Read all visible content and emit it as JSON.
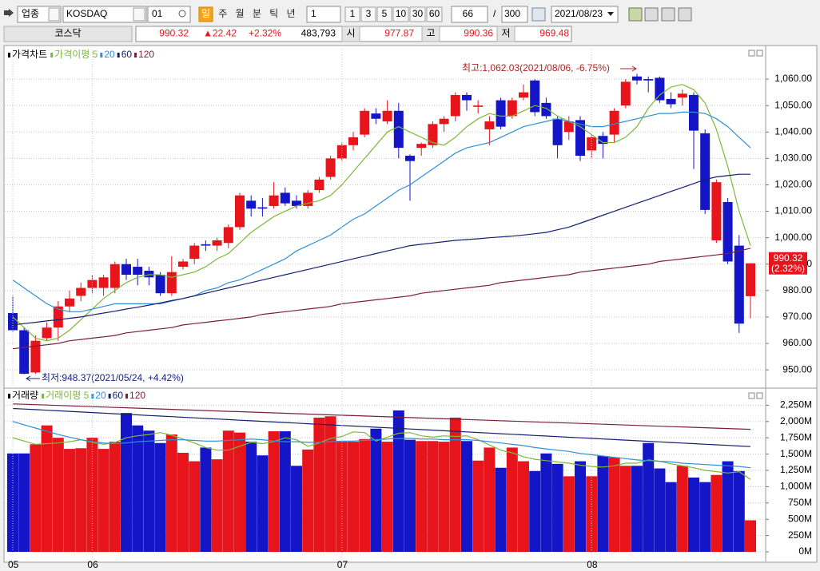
{
  "toolbar": {
    "market": "업종",
    "code": "KOSDAQ",
    "sub_code": "01",
    "periods": [
      "일",
      "주",
      "월",
      "분",
      "틱",
      "년"
    ],
    "interval": "1",
    "quick": [
      "1",
      "3",
      "5",
      "10",
      "30",
      "60"
    ],
    "count": "66",
    "separator": "/",
    "max": "300",
    "date": "2021/08/23"
  },
  "quote": {
    "name": "코스닥",
    "price": "990.32",
    "change": "▲22.42",
    "change_pct": "+2.32%",
    "volume": "483,793",
    "open_label": "시",
    "open": "977.87",
    "high_label": "고",
    "high": "990.36",
    "low_label": "저",
    "low": "969.48"
  },
  "chart_data": [
    {
      "type": "candlestick",
      "legend_title": "가격차트",
      "up_color": "#e8141c",
      "down_color": "#1515c8",
      "open": [
        971.5,
        965,
        949,
        962,
        966,
        974,
        978,
        981,
        981,
        981,
        990,
        989,
        987.5,
        986,
        979,
        989,
        992,
        997.5,
        997,
        998,
        1004,
        1014,
        1011.5,
        1012,
        1017,
        1014,
        1012,
        1018,
        1023,
        1030,
        1035,
        1039,
        1047,
        1044,
        1048,
        1031,
        1034,
        1035,
        1043,
        1046,
        1054,
        1049.5,
        1041,
        1052,
        1046,
        1053,
        1059.5,
        1051,
        1045,
        1040,
        1044.5,
        1033,
        1038.5,
        1039,
        1050,
        1061,
        1060,
        1060.5,
        1052.5,
        1053,
        1054,
        1039.5,
        999,
        1013.5,
        997,
        977.87
      ],
      "high": [
        978,
        966,
        963,
        968,
        976,
        980,
        983,
        986,
        986,
        991,
        992,
        992,
        989,
        987,
        993,
        992,
        998,
        999,
        1000,
        1005,
        1017,
        1016,
        1015,
        1021,
        1019,
        1016,
        1018,
        1023,
        1031,
        1036,
        1040,
        1049,
        1049,
        1052,
        1051,
        1031.5,
        1036,
        1044,
        1046,
        1055,
        1055,
        1052,
        1046,
        1053,
        1053,
        1058,
        1060,
        1053,
        1046,
        1046,
        1046,
        1039,
        1040,
        1049,
        1060,
        1062.03,
        1061,
        1061,
        1055,
        1056,
        1055,
        1041,
        1022,
        1015,
        1001,
        990.36
      ],
      "low": [
        964.5,
        948.37,
        948.5,
        961,
        961,
        972,
        976,
        979,
        978,
        979,
        984,
        982,
        982,
        978,
        978,
        988,
        990,
        995,
        995,
        996,
        1003,
        1008,
        1008,
        1011,
        1012,
        1011,
        1011,
        1017,
        1022,
        1029,
        1033,
        1038,
        1043,
        1043,
        1030,
        1014,
        1031,
        1034,
        1040,
        1044,
        1048,
        1047,
        1035,
        1041,
        1045,
        1052,
        1046,
        1045,
        1030,
        1037,
        1029,
        1030,
        1030,
        1036,
        1049,
        1058,
        1055,
        1051,
        1049,
        1050,
        1026,
        1009,
        998,
        990,
        964,
        969.48
      ],
      "close": [
        965,
        948.5,
        961,
        966,
        974,
        977,
        981,
        984,
        985,
        990,
        986,
        986,
        985,
        979,
        987,
        991,
        997,
        997,
        999,
        1004,
        1016,
        1011,
        1011,
        1016,
        1013,
        1012,
        1017,
        1022,
        1030,
        1035,
        1038,
        1048,
        1045,
        1048,
        1034,
        1029,
        1035.5,
        1043,
        1045,
        1054,
        1052,
        1050,
        1044,
        1042,
        1052,
        1055,
        1047.5,
        1046,
        1035,
        1044,
        1031,
        1038,
        1035.5,
        1048,
        1059,
        1059.5,
        1059.5,
        1052,
        1050.5,
        1054.5,
        1040.5,
        1010.5,
        1021,
        991,
        967.5,
        990.32
      ],
      "change_label": "(2.32%)",
      "ma_series": [
        {
          "name": "가격이평 5",
          "color": "#7cb83a",
          "values": [
            970,
            966,
            962,
            961,
            962,
            965,
            969,
            973,
            977,
            980,
            983,
            985,
            986,
            986,
            985,
            986,
            987,
            989,
            992,
            994,
            998,
            1002,
            1005,
            1008,
            1010,
            1012,
            1013,
            1014,
            1016,
            1020,
            1025,
            1030,
            1035,
            1040,
            1042,
            1040,
            1038,
            1036,
            1035,
            1038,
            1042,
            1045,
            1047,
            1046,
            1046,
            1048,
            1050,
            1049,
            1046,
            1044,
            1042,
            1039,
            1036,
            1036,
            1038,
            1042,
            1049,
            1054,
            1057,
            1058,
            1056,
            1051,
            1041,
            1027,
            1010,
            997
          ]
        },
        {
          "name": "20",
          "color": "#2f8fd6",
          "values": [
            984,
            981,
            978,
            975,
            973,
            972,
            972,
            973,
            974,
            975,
            975,
            975,
            975,
            975,
            976,
            977,
            978,
            980,
            981,
            983,
            984,
            986,
            988,
            990,
            992,
            995,
            997,
            999,
            1001,
            1004,
            1007,
            1009,
            1012,
            1015,
            1018,
            1020,
            1023,
            1026,
            1029,
            1032,
            1034,
            1035,
            1036,
            1038,
            1040,
            1042,
            1043,
            1044,
            1045,
            1044,
            1043,
            1042,
            1042,
            1043,
            1044,
            1045,
            1046,
            1047,
            1047,
            1047.5,
            1047.5,
            1047,
            1045,
            1042,
            1038,
            1034
          ]
        },
        {
          "name": "60",
          "color": "#14206e",
          "values": [
            967,
            967.5,
            968,
            968.5,
            969,
            969.5,
            970,
            970.8,
            971.5,
            972.2,
            973,
            973.7,
            974.5,
            975.3,
            976.2,
            977,
            978,
            979,
            980,
            981,
            982,
            983,
            984,
            985,
            986,
            987,
            988,
            989,
            990,
            991,
            992,
            993,
            994,
            995,
            996,
            997,
            997.5,
            998,
            998.5,
            999,
            999.3,
            999.6,
            1000,
            1000.3,
            1000.6,
            1001,
            1001.5,
            1002,
            1003,
            1004,
            1005.5,
            1007,
            1008.5,
            1010,
            1011.5,
            1013,
            1014.5,
            1016,
            1017.5,
            1019,
            1020.5,
            1022,
            1023,
            1023.5,
            1024,
            1024
          ]
        },
        {
          "name": "120",
          "color": "#7a1f3d",
          "values": [
            958,
            958.5,
            959,
            959.5,
            960,
            961,
            961.5,
            962,
            962.5,
            963,
            964,
            964.5,
            965,
            965.5,
            966,
            967,
            967.5,
            968,
            968.5,
            969,
            969.5,
            970,
            971,
            971.5,
            972,
            972.5,
            973,
            973.5,
            974,
            975,
            975.5,
            976,
            976.5,
            977,
            977.5,
            978,
            979,
            979.5,
            980,
            980.5,
            981,
            981.5,
            982,
            983,
            983.5,
            984,
            984.5,
            985,
            985.5,
            986,
            987,
            987.5,
            988,
            988.5,
            989,
            989.5,
            990,
            991,
            991.5,
            992,
            992.5,
            993,
            993.5,
            994,
            995,
            996
          ]
        }
      ],
      "annotations": [
        "최고:1,062.03(2021/08/06, -6.75%)",
        "최저:948.37(2021/05/24, +4.42%)"
      ],
      "ylim": [
        944,
        1071.2
      ],
      "yticks": [
        {
          "value": 950,
          "label": "950.00"
        },
        {
          "value": 960,
          "label": "960.00"
        },
        {
          "value": 970,
          "label": "970.00"
        },
        {
          "value": 980,
          "label": "980.00"
        },
        {
          "value": 990,
          "label": "990.00"
        },
        {
          "value": 1000,
          "label": "1,000.00"
        },
        {
          "value": 1010,
          "label": "1,010.00"
        },
        {
          "value": 1020,
          "label": "1,020.00"
        },
        {
          "value": 1030,
          "label": "1,030.00"
        },
        {
          "value": 1040,
          "label": "1,040.00"
        },
        {
          "value": 1050,
          "label": "1,050.00"
        },
        {
          "value": 1060,
          "label": "1,060.00"
        }
      ],
      "grid": true
    },
    {
      "type": "bar",
      "legend_title": "거래량",
      "up_color": "#e8141c",
      "down_color": "#1515c8",
      "categories": [
        "05",
        null,
        null,
        null,
        null,
        null,
        null,
        "06",
        null,
        null,
        null,
        null,
        null,
        null,
        null,
        null,
        null,
        null,
        null,
        null,
        null,
        null,
        null,
        null,
        null,
        null,
        null,
        null,
        null,
        "07",
        null,
        null,
        null,
        null,
        null,
        null,
        null,
        null,
        null,
        null,
        null,
        null,
        null,
        null,
        null,
        null,
        null,
        null,
        null,
        null,
        null,
        "08",
        null,
        null,
        null,
        null,
        null,
        null,
        null,
        null,
        null,
        null,
        null,
        null,
        null,
        null
      ],
      "values": [
        1510,
        1510,
        1650,
        1940,
        1750,
        1580,
        1590,
        1750,
        1580,
        1690,
        2130,
        1940,
        1860,
        1670,
        1800,
        1520,
        1390,
        1600,
        1420,
        1860,
        1830,
        1690,
        1480,
        1850,
        1850,
        1320,
        1570,
        2060,
        2080,
        1690,
        1690,
        1730,
        1890,
        1690,
        2170,
        1720,
        1700,
        1700,
        1690,
        2060,
        1700,
        1400,
        1600,
        1290,
        1600,
        1390,
        1240,
        1510,
        1350,
        1160,
        1390,
        1160,
        1470,
        1450,
        1320,
        1320,
        1670,
        1280,
        1070,
        1320,
        1140,
        1070,
        1180,
        1390,
        1240,
        484
      ],
      "ma_series": [
        {
          "name": "거래이평 5",
          "color": "#7cb83a",
          "values": [
            1750,
            1700,
            1650,
            1660,
            1670,
            1690,
            1720,
            1680,
            1650,
            1680,
            1750,
            1780,
            1800,
            1830,
            1790,
            1730,
            1670,
            1600,
            1560,
            1560,
            1620,
            1680,
            1660,
            1690,
            1750,
            1720,
            1620,
            1670,
            1740,
            1770,
            1840,
            1830,
            1700,
            1760,
            1820,
            1830,
            1780,
            1760,
            1780,
            1770,
            1780,
            1720,
            1640,
            1560,
            1520,
            1460,
            1420,
            1400,
            1380,
            1360,
            1330,
            1310,
            1300,
            1320,
            1360,
            1360,
            1410,
            1390,
            1350,
            1320,
            1290,
            1250,
            1230,
            1210,
            1230,
            1110
          ]
        },
        {
          "name": "20",
          "color": "#2f8fd6",
          "values": [
            2000,
            1950,
            1900,
            1850,
            1800,
            1760,
            1720,
            1690,
            1670,
            1660,
            1670,
            1690,
            1700,
            1710,
            1720,
            1720,
            1710,
            1700,
            1700,
            1710,
            1720,
            1730,
            1720,
            1700,
            1690,
            1690,
            1680,
            1680,
            1690,
            1700,
            1700,
            1710,
            1720,
            1730,
            1740,
            1740,
            1730,
            1730,
            1720,
            1720,
            1720,
            1710,
            1690,
            1670,
            1650,
            1630,
            1600,
            1580,
            1560,
            1540,
            1510,
            1490,
            1470,
            1450,
            1430,
            1410,
            1400,
            1390,
            1380,
            1360,
            1350,
            1340,
            1330,
            1320,
            1310,
            1290
          ]
        },
        {
          "name": "60",
          "color": "#14206e",
          "values": [
            2200,
            2191,
            2182,
            2173,
            2164,
            2155,
            2146,
            2137,
            2128,
            2119,
            2110,
            2101,
            2092,
            2083,
            2074,
            2065,
            2056,
            2047,
            2038,
            2029,
            2020,
            2011,
            2002,
            1993,
            1984,
            1975,
            1966,
            1957,
            1948,
            1939,
            1930,
            1921,
            1912,
            1903,
            1894,
            1885,
            1876,
            1867,
            1858,
            1849,
            1840,
            1831,
            1822,
            1813,
            1804,
            1795,
            1786,
            1777,
            1768,
            1759,
            1750,
            1741,
            1732,
            1723,
            1714,
            1705,
            1696,
            1687,
            1678,
            1669,
            1660,
            1651,
            1642,
            1633,
            1624,
            1615
          ]
        },
        {
          "name": "120",
          "color": "#7a1f3d",
          "values": [
            2270,
            2264,
            2258,
            2252,
            2246,
            2240,
            2234,
            2228,
            2222,
            2216,
            2210,
            2204,
            2198,
            2192,
            2186,
            2180,
            2174,
            2168,
            2162,
            2156,
            2150,
            2144,
            2138,
            2132,
            2126,
            2120,
            2114,
            2108,
            2102,
            2096,
            2090,
            2084,
            2078,
            2072,
            2066,
            2060,
            2054,
            2048,
            2042,
            2036,
            2030,
            2024,
            2018,
            2012,
            2006,
            2000,
            1994,
            1988,
            1982,
            1976,
            1970,
            1964,
            1958,
            1952,
            1946,
            1940,
            1934,
            1928,
            1922,
            1916,
            1910,
            1904,
            1898,
            1892,
            1886,
            1880
          ]
        }
      ],
      "ylim": [
        -110,
        2463
      ],
      "yticks": [
        {
          "value": 0,
          "label": "0M"
        },
        {
          "value": 250,
          "label": "250M"
        },
        {
          "value": 500,
          "label": "500M"
        },
        {
          "value": 750,
          "label": "750M"
        },
        {
          "value": 1000,
          "label": "1,000M"
        },
        {
          "value": 1250,
          "label": "1,250M"
        },
        {
          "value": 1500,
          "label": "1,500M"
        },
        {
          "value": 1750,
          "label": "1,750M"
        },
        {
          "value": 2000,
          "label": "2,000M"
        },
        {
          "value": 2250,
          "label": "2,250M"
        }
      ],
      "grid": true
    }
  ]
}
